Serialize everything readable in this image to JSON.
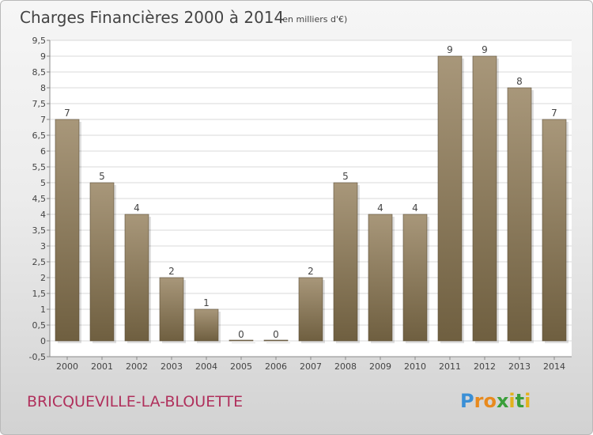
{
  "chart_data": {
    "type": "bar",
    "title": "Charges Financières 2000 à 2014",
    "subtitle": "(en milliers d'€)",
    "categories": [
      "2000",
      "2001",
      "2002",
      "2003",
      "2004",
      "2005",
      "2006",
      "2007",
      "2008",
      "2009",
      "2010",
      "2011",
      "2012",
      "2013",
      "2014"
    ],
    "values": [
      7,
      5,
      4,
      2,
      1,
      0,
      0,
      2,
      5,
      4,
      4,
      9,
      9,
      8,
      7
    ],
    "data_labels": [
      "7",
      "5",
      "4",
      "2",
      "1",
      "0",
      "0",
      "2",
      "5",
      "4",
      "4",
      "9",
      "9",
      "8",
      "7"
    ],
    "ylim": [
      -0.5,
      9.5
    ],
    "y_ticks": [
      "-0,5",
      "0",
      "0,5",
      "1",
      "1,5",
      "2",
      "2,5",
      "3",
      "3,5",
      "4",
      "4,5",
      "5",
      "5,5",
      "6",
      "6,5",
      "7",
      "7,5",
      "8",
      "8,5",
      "9",
      "9,5"
    ],
    "grid": true,
    "bar_color_top": "#a8977a",
    "bar_color_bottom": "#6f5f40",
    "grid_color": "#d8d8d8"
  },
  "footer": {
    "commune": "BRICQUEVILLE-LA-BLOUETTE",
    "brand_letters": [
      "P",
      "r",
      "o",
      "x",
      "i",
      "t",
      "i"
    ],
    "brand_colors": [
      "#3a8fd6",
      "#e88a1e",
      "#e88a1e",
      "#3a9f3a",
      "#e2b21c",
      "#3a9f3a",
      "#e2b21c"
    ]
  }
}
